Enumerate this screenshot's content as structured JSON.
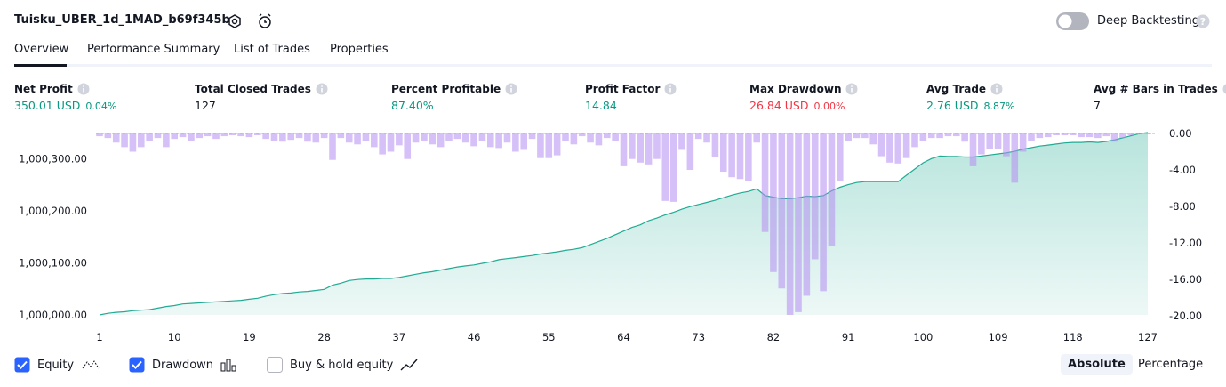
{
  "header": {
    "title": "Tuisku_UBER_1d_1MAD_b69f345b",
    "deep_backtesting": "Deep Backtesting"
  },
  "tabs": [
    "Overview",
    "Performance Summary",
    "List of Trades",
    "Properties"
  ],
  "metrics": [
    {
      "label": "Net Profit",
      "value": "350.01 USD",
      "change": "0.04%",
      "color": "#089981"
    },
    {
      "label": "Total Closed Trades",
      "value": "127",
      "color": "#131722"
    },
    {
      "label": "Percent Profitable",
      "value": "87.40%",
      "color": "#089981"
    },
    {
      "label": "Profit Factor",
      "value": "14.84",
      "color": "#089981"
    },
    {
      "label": "Max Drawdown",
      "value": "26.84 USD",
      "change": "0.00%",
      "color": "#f23645"
    },
    {
      "label": "Avg Trade",
      "value": "2.76 USD",
      "change": "8.87%",
      "color": "#089981"
    },
    {
      "label": "Avg # Bars in Trades",
      "value": "7",
      "color": "#131722"
    }
  ],
  "chart_data": {
    "type": "combo",
    "x": [
      1,
      2,
      3,
      4,
      5,
      6,
      7,
      8,
      9,
      10,
      11,
      12,
      13,
      14,
      15,
      16,
      17,
      18,
      19,
      20,
      21,
      22,
      23,
      24,
      25,
      26,
      27,
      28,
      29,
      30,
      31,
      32,
      33,
      34,
      35,
      36,
      37,
      38,
      39,
      40,
      41,
      42,
      43,
      44,
      45,
      46,
      47,
      48,
      49,
      50,
      51,
      52,
      53,
      54,
      55,
      56,
      57,
      58,
      59,
      60,
      61,
      62,
      63,
      64,
      65,
      66,
      67,
      68,
      69,
      70,
      71,
      72,
      73,
      74,
      75,
      76,
      77,
      78,
      79,
      80,
      81,
      82,
      83,
      84,
      85,
      86,
      87,
      88,
      89,
      90,
      91,
      92,
      93,
      94,
      95,
      96,
      97,
      98,
      99,
      100,
      101,
      102,
      103,
      104,
      105,
      106,
      107,
      108,
      109,
      110,
      111,
      112,
      113,
      114,
      115,
      116,
      117,
      118,
      119,
      120,
      121,
      122,
      123,
      124,
      125,
      126,
      127
    ],
    "xlim": [
      1,
      127
    ],
    "xticks": [
      1,
      10,
      19,
      28,
      37,
      46,
      55,
      64,
      73,
      82,
      91,
      100,
      109,
      118,
      127
    ],
    "ylim": [
      1000000,
      1000350
    ],
    "yticks": [
      {
        "value": 1000000,
        "label": "1,000,000.00"
      },
      {
        "value": 1000100,
        "label": "1,000,100.00"
      },
      {
        "value": 1000200,
        "label": "1,000,200.00"
      },
      {
        "value": 1000300,
        "label": "1,000,300.00"
      }
    ],
    "y2lim": [
      -20,
      0
    ],
    "y2ticks": [
      {
        "value": 0,
        "label": "0.00"
      },
      {
        "value": -4,
        "label": "-4.00"
      },
      {
        "value": -8,
        "label": "-8.00"
      },
      {
        "value": -12,
        "label": "-12.00"
      },
      {
        "value": -16,
        "label": "-16.00"
      },
      {
        "value": -20,
        "label": "-20.00"
      }
    ],
    "series": [
      {
        "name": "Equity",
        "type": "area",
        "color": "#22ab94",
        "visible": true,
        "values": [
          1000000,
          1000003,
          1000005,
          1000006,
          1000008,
          1000009,
          1000010,
          1000013,
          1000016,
          1000018,
          1000021,
          1000022,
          1000023,
          1000024,
          1000025,
          1000026,
          1000027,
          1000028,
          1000030,
          1000032,
          1000036,
          1000039,
          1000041,
          1000042,
          1000044,
          1000045,
          1000047,
          1000049,
          1000057,
          1000061,
          1000066,
          1000068,
          1000069,
          1000069,
          1000070,
          1000070,
          1000072,
          1000075,
          1000078,
          1000081,
          1000083,
          1000086,
          1000089,
          1000092,
          1000094,
          1000096,
          1000099,
          1000102,
          1000106,
          1000108,
          1000110,
          1000112,
          1000114,
          1000117,
          1000119,
          1000121,
          1000124,
          1000126,
          1000129,
          1000135,
          1000141,
          1000147,
          1000154,
          1000161,
          1000168,
          1000173,
          1000181,
          1000186,
          1000192,
          1000197,
          1000203,
          1000208,
          1000212,
          1000216,
          1000220,
          1000225,
          1000230,
          1000234,
          1000237,
          1000242,
          1000229,
          1000226,
          1000223,
          1000223,
          1000225,
          1000228,
          1000227,
          1000229,
          1000238,
          1000245,
          1000250,
          1000254,
          1000256,
          1000256,
          1000256,
          1000256,
          1000256,
          1000268,
          1000280,
          1000292,
          1000300,
          1000305,
          1000304,
          1000304,
          1000303,
          1000303,
          1000305,
          1000307,
          1000309,
          1000311,
          1000314,
          1000318,
          1000321,
          1000324,
          1000326,
          1000328,
          1000330,
          1000331,
          1000331,
          1000332,
          1000331,
          1000333,
          1000336,
          1000340,
          1000344,
          1000348,
          1000350.01
        ]
      },
      {
        "name": "Drawdown",
        "type": "bar",
        "axis": "y2",
        "color": "#b48cf2",
        "visible": true,
        "values": [
          -0.3,
          -0.5,
          -1.0,
          -1.5,
          -2.0,
          -1.5,
          -0.8,
          -0.5,
          -1.5,
          -0.6,
          -0.4,
          -0.8,
          -0.5,
          -0.3,
          -0.6,
          -0.3,
          -0.2,
          -0.3,
          -0.4,
          -0.2,
          -0.6,
          -0.8,
          -0.9,
          -0.7,
          -0.5,
          -0.9,
          -1.0,
          -0.5,
          -2.9,
          -0.5,
          -1.0,
          -1.2,
          -0.8,
          -1.5,
          -2.3,
          -2.0,
          -1.3,
          -2.8,
          -1.0,
          -0.8,
          -1.2,
          -1.5,
          -0.8,
          -0.6,
          -1.0,
          -1.4,
          -0.8,
          -1.5,
          -1.6,
          -1.0,
          -2.0,
          -1.8,
          -0.6,
          -2.7,
          -2.7,
          -2.4,
          -0.8,
          -1.2,
          -0.3,
          -1.0,
          -1.3,
          -0.5,
          -0.8,
          -3.6,
          -2.8,
          -3.2,
          -3.4,
          -2.8,
          -7.4,
          -7.5,
          -1.8,
          -4.0,
          -0.6,
          -1.0,
          -2.6,
          -4.2,
          -4.8,
          -5.0,
          -5.2,
          -1.0,
          -10.8,
          -15.2,
          -17.0,
          -19.9,
          -19.6,
          -17.8,
          -13.8,
          -17.3,
          -12.3,
          -5.2,
          -0.8,
          -0.5,
          -0.5,
          -1.2,
          -2.5,
          -3.2,
          -3.3,
          -2.7,
          -1.5,
          -0.8,
          -0.5,
          -0.5,
          -0.3,
          -0.3,
          -0.9,
          -3.6,
          -2.3,
          -1.7,
          -1.7,
          -2.5,
          -5.4,
          -2.0,
          -0.8,
          -0.5,
          -0.4,
          -0.2,
          -0.2,
          -0.2,
          -0.4,
          -0.4,
          -0.5,
          -0.3,
          -0.9,
          -0.5,
          -0.2,
          -0.1,
          -0.1
        ]
      }
    ],
    "buy_hold": {
      "name": "Buy & hold equity",
      "visible": false
    }
  },
  "scale_buttons": [
    "Absolute",
    "Percentage"
  ]
}
